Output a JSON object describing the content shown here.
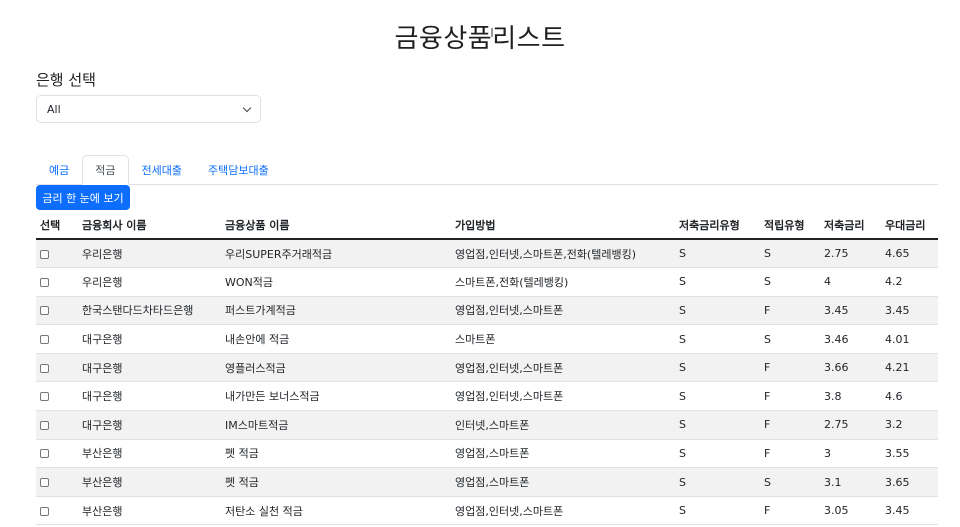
{
  "header": {
    "title_part1": "금융상품",
    "title_part2": "리스트"
  },
  "bank_select": {
    "label": "은행 선택",
    "value": "All"
  },
  "tabs": [
    {
      "label": "예금",
      "active": false
    },
    {
      "label": "적금",
      "active": true
    },
    {
      "label": "전세대출",
      "active": false
    },
    {
      "label": "주택담보대출",
      "active": false
    }
  ],
  "compare_button": {
    "label": "금리 한 눈에 보기"
  },
  "table": {
    "columns": [
      "선택",
      "금융회사 이름",
      "금융상품 이름",
      "가입방법",
      "저축금리유형",
      "적립유형",
      "저축금리",
      "우대금리"
    ],
    "rows": [
      {
        "company": "우리은행",
        "product": "우리SUPER주거래적금",
        "method": "영업점,인터넷,스마트폰,전화(텔레뱅킹)",
        "rate_type": "S",
        "save_type": "S",
        "rate": "2.75",
        "pref_rate": "4.65"
      },
      {
        "company": "우리은행",
        "product": "WON적금",
        "method": "스마트폰,전화(텔레뱅킹)",
        "rate_type": "S",
        "save_type": "S",
        "rate": "4",
        "pref_rate": "4.2"
      },
      {
        "company": "한국스탠다드차타드은행",
        "product": "퍼스트가계적금",
        "method": "영업점,인터넷,스마트폰",
        "rate_type": "S",
        "save_type": "F",
        "rate": "3.45",
        "pref_rate": "3.45"
      },
      {
        "company": "대구은행",
        "product": "내손안에 적금",
        "method": "스마트폰",
        "rate_type": "S",
        "save_type": "S",
        "rate": "3.46",
        "pref_rate": "4.01"
      },
      {
        "company": "대구은행",
        "product": "영플러스적금",
        "method": "영업점,인터넷,스마트폰",
        "rate_type": "S",
        "save_type": "F",
        "rate": "3.66",
        "pref_rate": "4.21"
      },
      {
        "company": "대구은행",
        "product": "내가만든 보너스적금",
        "method": "영업점,인터넷,스마트폰",
        "rate_type": "S",
        "save_type": "F",
        "rate": "3.8",
        "pref_rate": "4.6"
      },
      {
        "company": "대구은행",
        "product": "IM스마트적금",
        "method": "인터넷,스마트폰",
        "rate_type": "S",
        "save_type": "F",
        "rate": "2.75",
        "pref_rate": "3.2"
      },
      {
        "company": "부산은행",
        "product": "펫 적금",
        "method": "영업점,스마트폰",
        "rate_type": "S",
        "save_type": "F",
        "rate": "3",
        "pref_rate": "3.55"
      },
      {
        "company": "부산은행",
        "product": "펫 적금",
        "method": "영업점,스마트폰",
        "rate_type": "S",
        "save_type": "S",
        "rate": "3.1",
        "pref_rate": "3.65"
      },
      {
        "company": "부산은행",
        "product": "저탄소 실천 적금",
        "method": "영업점,인터넷,스마트폰",
        "rate_type": "S",
        "save_type": "F",
        "rate": "3.05",
        "pref_rate": "3.45"
      }
    ]
  }
}
